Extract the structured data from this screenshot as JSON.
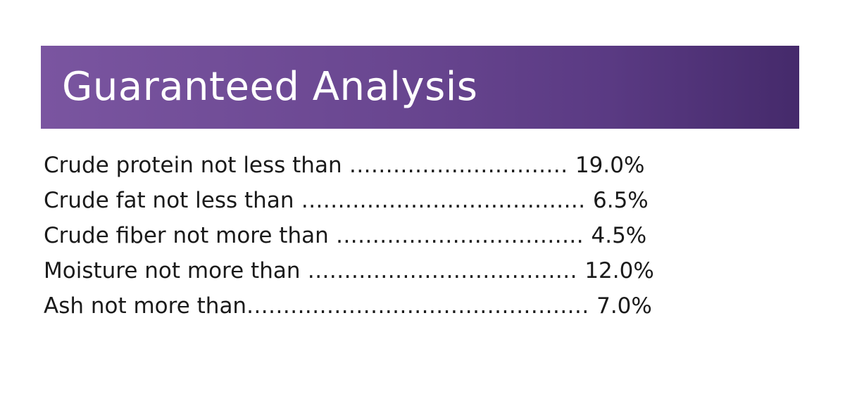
{
  "header": {
    "title": "Guaranteed Analysis",
    "background_color": "#6a4791",
    "title_color": "#ffffff"
  },
  "analysis": [
    {
      "label": "Crude protein not less than",
      "leader": " .............................. ",
      "value": "19.0%"
    },
    {
      "label": "Crude fat not less than",
      "leader": " ....................................... ",
      "value": "6.5%"
    },
    {
      "label": "Crude fiber not more than",
      "leader": " .................................. ",
      "value": "4.5%"
    },
    {
      "label": "Moisture not more than",
      "leader": " ..................................... ",
      "value": "12.0%"
    },
    {
      "label": "Ash not more than",
      "leader": "............................................... ",
      "value": "7.0%"
    }
  ]
}
